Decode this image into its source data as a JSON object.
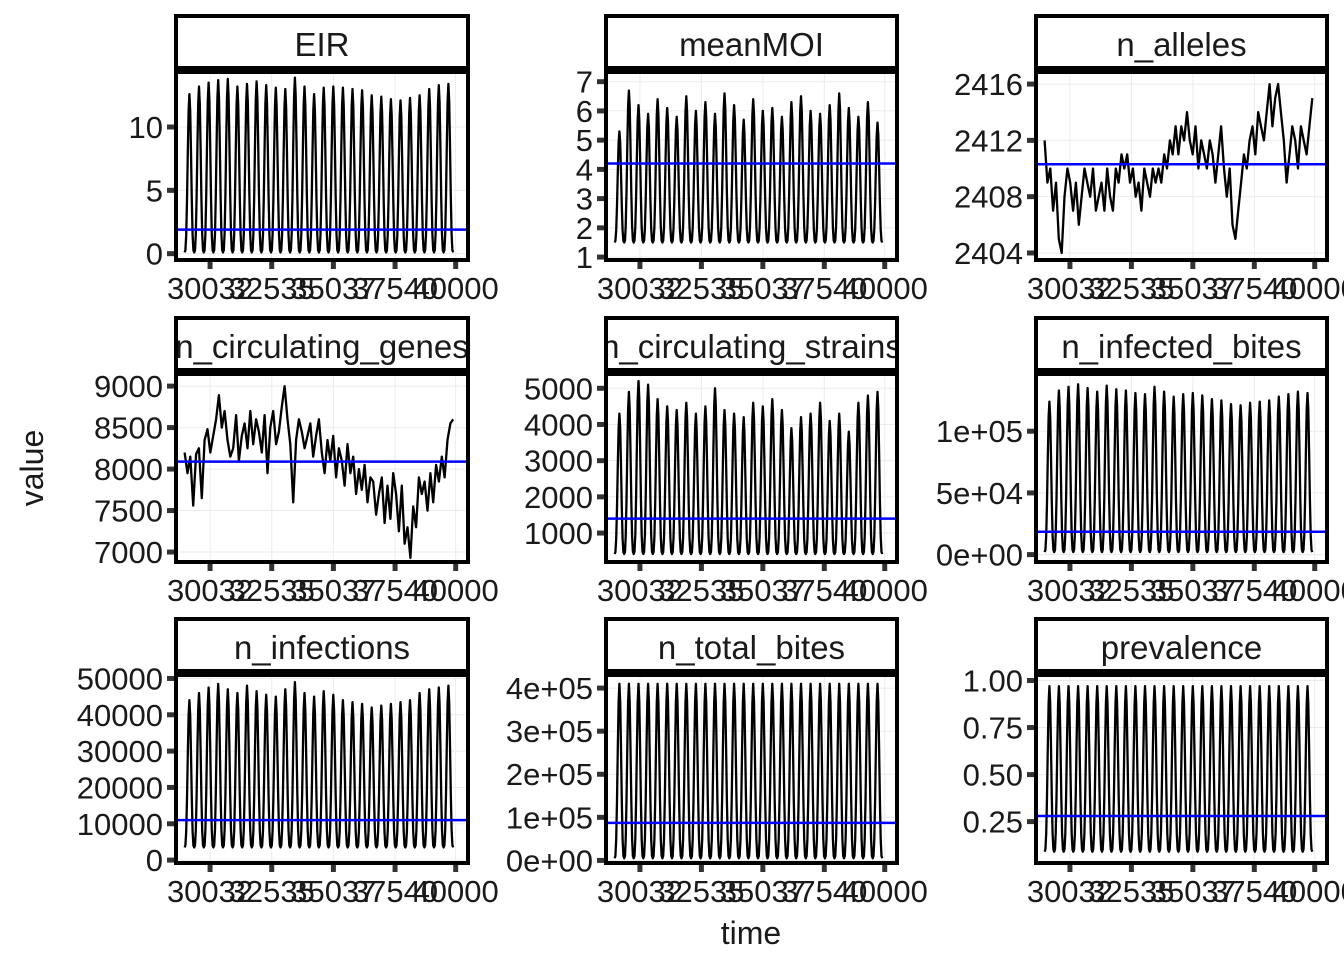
{
  "chart_data": {
    "type": "line",
    "layout": "facet-grid",
    "xlabel": "time",
    "ylabel": "value",
    "colors": {
      "series": "#000000",
      "mean_line": "#0000ff"
    },
    "x_ticks": [
      "30032",
      "32535",
      "35037",
      "37540",
      "40000"
    ],
    "x_ticks_values": [
      30032,
      32535,
      35037,
      37540,
      40000
    ],
    "xlim": [
      28650,
      40500
    ],
    "x_range": [
      29000,
      39900
    ],
    "n_cycles": 28,
    "panels": [
      {
        "title": "EIR",
        "ylim": [
          -0.5,
          14.5
        ],
        "y_ticks": [
          "0",
          "5",
          "10"
        ],
        "y_tick_values": [
          0,
          5,
          10
        ],
        "mean": 1.9,
        "shape": "seasonal",
        "low": 0.1,
        "peaks": [
          12.6,
          13.2,
          13.5,
          13.7,
          13.8,
          13.2,
          13.4,
          13.6,
          13.3,
          13.1,
          13.0,
          13.9,
          13.2,
          12.6,
          13.1,
          13.2,
          13.1,
          13.0,
          12.9,
          12.5,
          12.4,
          12.2,
          12.1,
          12.3,
          12.5,
          13.0,
          13.3,
          13.4
        ]
      },
      {
        "title": "meanMOI",
        "ylim": [
          0.9,
          7.4
        ],
        "y_ticks": [
          "1",
          "2",
          "3",
          "4",
          "5",
          "6",
          "7"
        ],
        "y_tick_values": [
          1,
          2,
          3,
          4,
          5,
          6,
          7
        ],
        "mean": 4.2,
        "shape": "seasonal",
        "low": 1.5,
        "peaks": [
          5.3,
          6.7,
          6.2,
          5.9,
          6.4,
          6.1,
          5.8,
          6.5,
          6.0,
          6.3,
          5.9,
          6.6,
          6.2,
          5.7,
          6.4,
          6.0,
          6.1,
          5.8,
          6.3,
          6.5,
          6.0,
          5.9,
          6.2,
          6.6,
          6.1,
          5.8,
          6.3,
          5.6
        ]
      },
      {
        "title": "n_alleles",
        "ylim": [
          2403.5,
          2417
        ],
        "y_ticks": [
          "2404",
          "2408",
          "2412",
          "2416"
        ],
        "y_tick_values": [
          2404,
          2408,
          2412,
          2416
        ],
        "mean": 2410.3,
        "shape": "walk",
        "values": [
          2412,
          2409,
          2410,
          2407,
          2409,
          2405,
          2404,
          2408,
          2410,
          2409,
          2407,
          2409,
          2406,
          2408,
          2410,
          2409,
          2408,
          2410,
          2407,
          2408,
          2409,
          2407,
          2410,
          2408,
          2407,
          2410,
          2409,
          2411,
          2410,
          2411,
          2409,
          2410,
          2408,
          2409,
          2407,
          2410,
          2409,
          2408,
          2410,
          2409,
          2410,
          2409,
          2411,
          2410,
          2412,
          2411,
          2413,
          2411,
          2413,
          2412,
          2414,
          2412,
          2411,
          2413,
          2410,
          2412,
          2411,
          2410,
          2412,
          2411,
          2409,
          2411,
          2413,
          2410,
          2408,
          2410,
          2406,
          2405,
          2407,
          2409,
          2411,
          2410,
          2412,
          2413,
          2411,
          2414,
          2413,
          2412,
          2414,
          2416,
          2413,
          2415,
          2416,
          2414,
          2412,
          2409,
          2411,
          2413,
          2412,
          2410,
          2413,
          2412,
          2411,
          2413,
          2415
        ]
      },
      {
        "title": "n_circulating_genes",
        "ylim": [
          6880,
          9170
        ],
        "y_ticks": [
          "7000",
          "7500",
          "8000",
          "8500",
          "9000"
        ],
        "y_tick_values": [
          7000,
          7500,
          8000,
          8500,
          9000
        ],
        "mean": 8090,
        "shape": "walk",
        "values": [
          8200,
          7950,
          8150,
          7560,
          8180,
          8250,
          7650,
          8350,
          8480,
          8200,
          8400,
          8600,
          8890,
          8500,
          8700,
          8350,
          8150,
          8250,
          8650,
          8100,
          8400,
          8550,
          8250,
          8700,
          8300,
          8600,
          8450,
          8200,
          8650,
          7950,
          8500,
          8700,
          8300,
          8450,
          8750,
          9000,
          8600,
          8300,
          7600,
          8350,
          8600,
          8450,
          8250,
          8400,
          8550,
          8150,
          8400,
          8600,
          8200,
          7950,
          8350,
          8100,
          8400,
          7900,
          8250,
          8100,
          7800,
          8300,
          7950,
          8150,
          7700,
          8000,
          7750,
          8050,
          7600,
          7900,
          7850,
          7450,
          7700,
          7900,
          7350,
          7800,
          7400,
          7950,
          7700,
          7250,
          7800,
          7100,
          7300,
          6930,
          7550,
          7300,
          7900,
          7700,
          7850,
          7500,
          7950,
          7600,
          8050,
          7850,
          8150,
          7900,
          8350,
          8550,
          8600
        ]
      },
      {
        "title": "n_circulating_strains",
        "ylim": [
          200,
          5450
        ],
        "y_ticks": [
          "1000",
          "2000",
          "3000",
          "4000",
          "5000"
        ],
        "y_tick_values": [
          1000,
          2000,
          3000,
          4000,
          5000
        ],
        "mean": 1400,
        "shape": "seasonal",
        "low": 420,
        "peaks": [
          4300,
          4900,
          5200,
          5100,
          4700,
          4500,
          4400,
          4600,
          4300,
          4500,
          5000,
          4400,
          4300,
          4200,
          4600,
          4500,
          4700,
          4400,
          3900,
          4200,
          4300,
          4600,
          4100,
          4300,
          3800,
          4600,
          4800,
          4900
        ]
      },
      {
        "title": "n_infected_bites",
        "ylim": [
          -6000,
          148000
        ],
        "y_ticks": [
          "0e+00",
          "5e+04",
          "1e+05"
        ],
        "y_tick_values": [
          0,
          50000,
          100000
        ],
        "mean": 18500,
        "shape": "seasonal",
        "low": 2000,
        "peaks": [
          124000,
          133000,
          136000,
          138000,
          135000,
          132000,
          137000,
          134000,
          133000,
          131000,
          130000,
          136000,
          132000,
          128000,
          130000,
          131000,
          129000,
          126000,
          125000,
          122000,
          121000,
          123000,
          124000,
          125000,
          128000,
          130000,
          132000,
          131000
        ]
      },
      {
        "title": "n_infections",
        "ylim": [
          -800,
          51500
        ],
        "y_ticks": [
          "0",
          "10000",
          "20000",
          "30000",
          "40000",
          "50000"
        ],
        "y_tick_values": [
          0,
          10000,
          20000,
          30000,
          40000,
          50000
        ],
        "mean": 11000,
        "shape": "seasonal",
        "low": 3500,
        "peaks": [
          44000,
          46000,
          47500,
          48500,
          47000,
          46000,
          48000,
          46500,
          45500,
          45000,
          47000,
          49000,
          46000,
          45000,
          46500,
          45500,
          44000,
          43500,
          43000,
          42000,
          42500,
          43000,
          43500,
          44000,
          46000,
          47000,
          47500,
          48000
        ]
      },
      {
        "title": "n_total_bites",
        "ylim": [
          -6000,
          435000
        ],
        "y_ticks": [
          "0e+00",
          "1e+05",
          "2e+05",
          "3e+05",
          "4e+05"
        ],
        "y_tick_values": [
          0,
          100000,
          200000,
          300000,
          400000
        ],
        "mean": 87000,
        "shape": "seasonal",
        "low": 5000,
        "peaks": [
          410000,
          410000,
          410000,
          410000,
          410000,
          410000,
          410000,
          410000,
          410000,
          410000,
          410000,
          410000,
          410000,
          410000,
          410000,
          410000,
          410000,
          410000,
          410000,
          410000,
          410000,
          410000,
          410000,
          410000,
          410000,
          410000,
          410000,
          410000
        ]
      },
      {
        "title": "prevalence",
        "ylim": [
          0.03,
          1.04
        ],
        "y_ticks": [
          "0.25",
          "0.50",
          "0.75",
          "1.00"
        ],
        "y_tick_values": [
          0.25,
          0.5,
          0.75,
          1.0
        ],
        "mean": 0.28,
        "shape": "seasonal",
        "low": 0.09,
        "peaks": [
          0.97,
          0.97,
          0.97,
          0.97,
          0.97,
          0.97,
          0.97,
          0.97,
          0.97,
          0.97,
          0.97,
          0.97,
          0.97,
          0.97,
          0.97,
          0.97,
          0.97,
          0.97,
          0.97,
          0.97,
          0.97,
          0.97,
          0.97,
          0.97,
          0.97,
          0.97,
          0.97,
          0.97
        ]
      }
    ]
  }
}
